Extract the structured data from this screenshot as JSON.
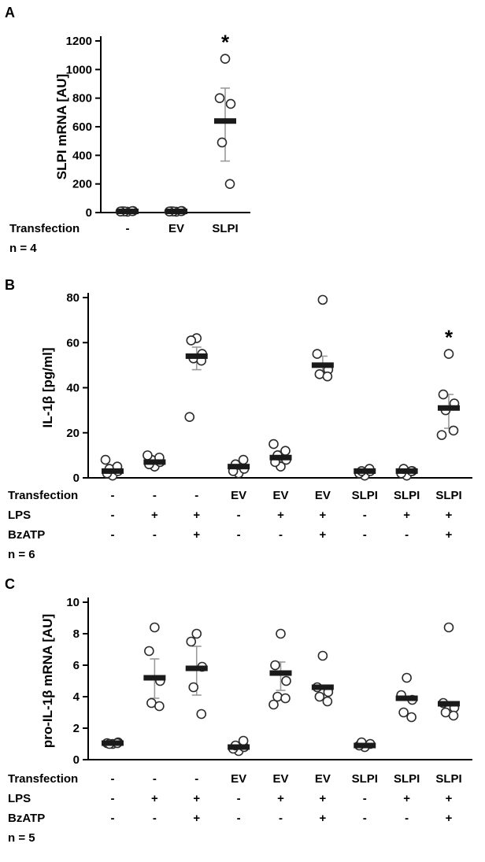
{
  "style": {
    "axis_color": "#000000",
    "point_fill": "#ffffff",
    "point_stroke": "#2b2b2b",
    "median_color": "#1a1a1a",
    "error_color": "#9a9a9a",
    "sig_symbol": "*"
  },
  "chart_data": [
    {
      "type": "scatter",
      "panel": "A",
      "title": "",
      "ylabel": "SLPI mRNA [AU]",
      "ylim": [
        0,
        1200
      ],
      "yticks": [
        0,
        200,
        400,
        600,
        800,
        1000,
        1200
      ],
      "n_label": "n = 4",
      "row_labels": [
        {
          "name": "Transfection",
          "values": [
            "-",
            "EV",
            "SLPI"
          ]
        }
      ],
      "groups": [
        {
          "label": "-",
          "points": [
            6,
            9,
            11,
            8,
            10,
            7
          ],
          "median": 8
        },
        {
          "label": "EV",
          "points": [
            6,
            9,
            11,
            8,
            10,
            7
          ],
          "median": 8
        },
        {
          "label": "SLPI",
          "points": [
            1075,
            800,
            760,
            490,
            200
          ],
          "median": 640,
          "error": [
            360,
            870
          ],
          "sig": "*"
        }
      ]
    },
    {
      "type": "scatter",
      "panel": "B",
      "title": "",
      "ylabel": "IL-1β [pg/ml]",
      "ylim": [
        0,
        80
      ],
      "yticks": [
        0,
        20,
        40,
        60,
        80
      ],
      "n_label": "n = 6",
      "row_labels": [
        {
          "name": "Transfection",
          "values": [
            "-",
            "-",
            "-",
            "EV",
            "EV",
            "EV",
            "SLPI",
            "SLPI",
            "SLPI"
          ]
        },
        {
          "name": "LPS",
          "values": [
            "-",
            "+",
            "+",
            "-",
            "+",
            "+",
            "-",
            "+",
            "+"
          ]
        },
        {
          "name": "BzATP",
          "values": [
            "-",
            "-",
            "+",
            "-",
            "-",
            "+",
            "-",
            "-",
            "+"
          ]
        }
      ],
      "groups": [
        {
          "points": [
            1,
            2,
            3,
            4,
            5,
            8
          ],
          "median": 3
        },
        {
          "points": [
            5,
            6,
            7,
            8,
            9,
            10
          ],
          "median": 7
        },
        {
          "points": [
            62,
            61,
            55,
            53,
            52,
            27
          ],
          "median": 54,
          "error": [
            48,
            58
          ]
        },
        {
          "points": [
            2,
            3,
            4,
            6,
            8
          ],
          "median": 5
        },
        {
          "points": [
            5,
            7,
            8,
            10,
            12,
            15
          ],
          "median": 9,
          "error": [
            6,
            12
          ]
        },
        {
          "points": [
            79,
            55,
            48,
            46,
            45
          ],
          "median": 50,
          "error": [
            45,
            54
          ]
        },
        {
          "points": [
            1,
            2,
            3,
            3,
            4
          ],
          "median": 3
        },
        {
          "points": [
            1,
            2,
            3,
            4,
            3
          ],
          "median": 3
        },
        {
          "points": [
            55,
            37,
            33,
            30,
            21,
            19
          ],
          "median": 31,
          "error": [
            22,
            37
          ],
          "sig": "*"
        }
      ]
    },
    {
      "type": "scatter",
      "panel": "C",
      "title": "",
      "ylabel": "pro-IL-1β mRNA [AU]",
      "ylim": [
        0,
        10
      ],
      "yticks": [
        0,
        2,
        4,
        6,
        8,
        10
      ],
      "n_label": "n = 5",
      "row_labels": [
        {
          "name": "Transfection",
          "values": [
            "-",
            "-",
            "-",
            "EV",
            "EV",
            "EV",
            "SLPI",
            "SLPI",
            "SLPI"
          ]
        },
        {
          "name": "LPS",
          "values": [
            "-",
            "+",
            "+",
            "-",
            "+",
            "+",
            "-",
            "+",
            "+"
          ]
        },
        {
          "name": "BzATP",
          "values": [
            "-",
            "-",
            "+",
            "-",
            "-",
            "+",
            "-",
            "-",
            "+"
          ]
        }
      ],
      "groups": [
        {
          "points": [
            1.0,
            1.05,
            1.1,
            1.0,
            1.05
          ],
          "median": 1.05
        },
        {
          "points": [
            8.4,
            6.9,
            5.0,
            3.6,
            3.4
          ],
          "median": 5.2,
          "error": [
            3.9,
            6.4
          ]
        },
        {
          "points": [
            8.0,
            7.5,
            5.9,
            4.6,
            2.9
          ],
          "median": 5.8,
          "error": [
            4.1,
            7.2
          ]
        },
        {
          "points": [
            0.55,
            0.7,
            0.8,
            0.9,
            1.2
          ],
          "median": 0.8
        },
        {
          "points": [
            8.0,
            6.0,
            5.0,
            4.0,
            3.9,
            3.5
          ],
          "median": 5.5,
          "error": [
            4.4,
            6.2
          ]
        },
        {
          "points": [
            6.6,
            4.6,
            4.3,
            4.0,
            3.7
          ],
          "median": 4.6
        },
        {
          "points": [
            0.8,
            0.9,
            1.0,
            1.1
          ],
          "median": 0.9
        },
        {
          "points": [
            5.2,
            4.1,
            3.8,
            3.0,
            2.7
          ],
          "median": 3.9
        },
        {
          "points": [
            8.4,
            3.6,
            3.3,
            3.0,
            2.8
          ],
          "median": 3.55
        }
      ]
    }
  ]
}
